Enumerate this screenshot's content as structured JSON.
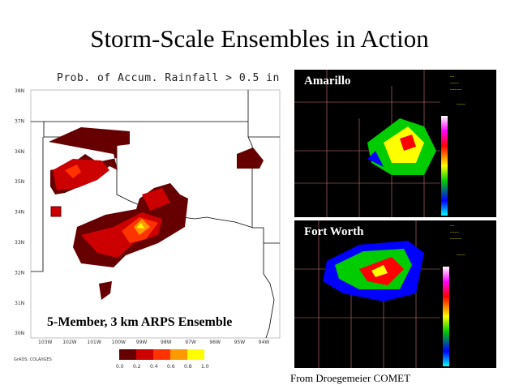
{
  "slide": {
    "title": "Storm-Scale Ensembles in Action",
    "credit": "From Droegemeier COMET"
  },
  "map": {
    "title": "Prob. of Accum. Rainfall > 0.5 in",
    "label": "5-Member, 3 km ARPS Ensemble",
    "lat_labels": [
      "38N",
      "37N",
      "36N",
      "35N",
      "34N",
      "33N",
      "32N",
      "31N",
      "30N"
    ],
    "lon_labels": [
      "103W",
      "102W",
      "101W",
      "100W",
      "99W",
      "98W",
      "97W",
      "96W",
      "95W",
      "94W"
    ],
    "colorbar": {
      "ticks": [
        "0.0",
        "0.2",
        "0.4",
        "0.6",
        "0.8",
        "1.0"
      ],
      "colors": [
        "#660000",
        "#cc0000",
        "#ff3300",
        "#ff9900",
        "#ffff00"
      ]
    },
    "footer": "GrADS: COLA/IGES"
  },
  "radar": [
    {
      "label": "Amarillo"
    },
    {
      "label": "Fort Worth"
    }
  ],
  "radar_scale_colors": [
    "#ffffff",
    "#9933cc",
    "#ff00ff",
    "#cc0000",
    "#ff0000",
    "#ff0000",
    "#ff9900",
    "#ffcc00",
    "#ffff00",
    "#009900",
    "#00cc00",
    "#00ff00",
    "#0000ff",
    "#0099ff",
    "#00ffff"
  ]
}
